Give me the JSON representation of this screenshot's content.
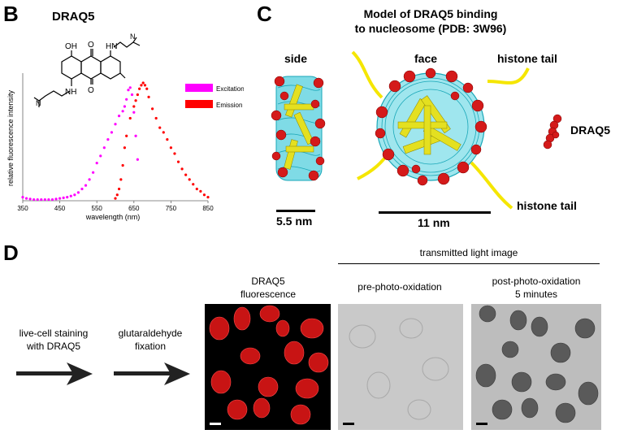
{
  "panels": {
    "B": {
      "letter": "B",
      "title": "DRAQ5"
    },
    "C": {
      "letter": "C",
      "title_line1": "Model of DRAQ5 binding",
      "title_line2": "to nucleosome (PDB: 3W96)",
      "side_label": "side",
      "face_label": "face",
      "histone_tail_top": "histone tail",
      "histone_tail_bottom": "histone tail",
      "draq5_label": "DRAQ5",
      "scale_side": "5.5 nm",
      "scale_face": "11 nm"
    },
    "D": {
      "letter": "D",
      "step1_line1": "live-cell staining",
      "step1_line2": "with DRAQ5",
      "step2_line1": "glutaraldehyde",
      "step2_line2": "fixation",
      "fluor_line1": "DRAQ5",
      "fluor_line2": "fluorescence",
      "transmitted_label": "transmitted light image",
      "pre_label": "pre-photo-oxidation",
      "post_line1": "post-photo-oxidation",
      "post_line2": "5 minutes"
    }
  },
  "structure_labels": {
    "oh": "OH",
    "o1": "O",
    "o2": "O",
    "hn1": "HN",
    "nh2": "NH",
    "n1": "N",
    "n2": "N"
  },
  "chart_data": {
    "type": "scatter",
    "title": "",
    "xlabel": "wavelength (nm)",
    "ylabel": "relative fluorescence intensity",
    "xlim": [
      350,
      850
    ],
    "ylim": [
      0,
      1
    ],
    "x_ticks": [
      "350",
      "450",
      "550",
      "650",
      "750",
      "850"
    ],
    "legend_position": "top-right",
    "grid": false,
    "series": [
      {
        "name": "Excitation",
        "color": "#ff00ff",
        "x": [
          350,
          360,
          370,
          380,
          390,
          400,
          410,
          420,
          430,
          440,
          450,
          460,
          470,
          480,
          490,
          500,
          510,
          520,
          530,
          540,
          550,
          560,
          570,
          580,
          590,
          600,
          610,
          620,
          625,
          630,
          635,
          640,
          645,
          650,
          655,
          660
        ],
        "y": [
          0.03,
          0.02,
          0.015,
          0.01,
          0.01,
          0.01,
          0.01,
          0.01,
          0.01,
          0.015,
          0.02,
          0.025,
          0.03,
          0.04,
          0.05,
          0.07,
          0.1,
          0.13,
          0.18,
          0.24,
          0.32,
          0.38,
          0.45,
          0.52,
          0.58,
          0.65,
          0.72,
          0.76,
          0.8,
          0.86,
          0.94,
          0.96,
          0.9,
          0.75,
          0.55,
          0.35
        ]
      },
      {
        "name": "Emission",
        "color": "#ff0000",
        "x": [
          600,
          605,
          610,
          615,
          620,
          625,
          630,
          640,
          650,
          655,
          660,
          665,
          670,
          675,
          680,
          685,
          690,
          700,
          710,
          720,
          730,
          740,
          750,
          760,
          770,
          780,
          790,
          800,
          810,
          820,
          830,
          840,
          850
        ],
        "y": [
          0.02,
          0.05,
          0.1,
          0.18,
          0.3,
          0.45,
          0.55,
          0.7,
          0.8,
          0.85,
          0.9,
          0.95,
          0.98,
          1.0,
          0.98,
          0.95,
          0.88,
          0.78,
          0.7,
          0.62,
          0.58,
          0.52,
          0.45,
          0.4,
          0.33,
          0.27,
          0.22,
          0.18,
          0.14,
          0.1,
          0.08,
          0.05,
          0.03
        ]
      }
    ]
  }
}
